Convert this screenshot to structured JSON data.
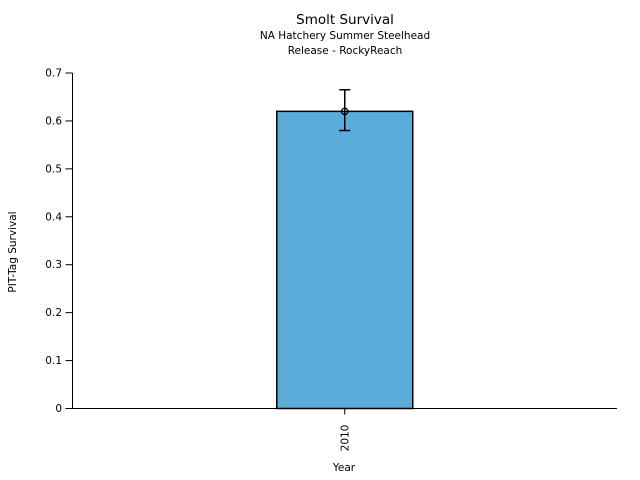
{
  "header": {
    "title": "Smolt Survival",
    "subtitle1": "NA Hatchery Summer Steelhead",
    "subtitle2": "Release - RockyReach"
  },
  "chart_data": {
    "type": "bar",
    "title": "Smolt Survival",
    "subtitles": [
      "NA Hatchery Summer Steelhead",
      "Release - RockyReach"
    ],
    "categories": [
      "2010"
    ],
    "values": [
      0.62
    ],
    "error_bars": [
      {
        "lower": 0.58,
        "upper": 0.665
      }
    ],
    "marker": "open-circle",
    "xlabel": "Year",
    "ylabel": "PIT-Tag Survival",
    "ylim": [
      0,
      0.7
    ],
    "yticks": [
      0,
      0.1,
      0.2,
      0.3,
      0.4,
      0.5,
      0.6,
      0.7
    ],
    "ytick_labels": [
      "0",
      "0.1",
      "0.2",
      "0.3",
      "0.4",
      "0.5",
      "0.6",
      "0.7"
    ],
    "xtick_rotation_deg": -90,
    "grid": false,
    "legend": "none",
    "colors": {
      "bar_fill": "#5BACD8",
      "bar_edge": "#000000",
      "error_bar": "#000000",
      "axis": "#000000",
      "text": "#000000",
      "background": "#FFFFFF"
    }
  }
}
